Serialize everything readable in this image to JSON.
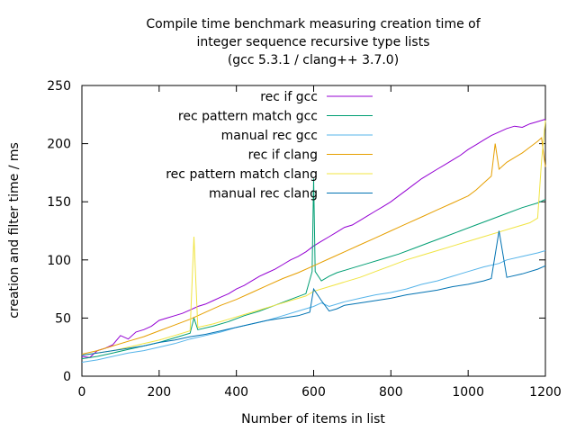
{
  "chart_data": {
    "type": "line",
    "title_lines": [
      "Compile time benchmark measuring creation time of",
      "integer sequence recursive type lists",
      "(gcc 5.3.1 / clang++ 3.7.0)"
    ],
    "xlabel": "Number of items in list",
    "ylabel": "creation and filter time / ms",
    "xlim": [
      0,
      1200
    ],
    "ylim": [
      0,
      250
    ],
    "xticks": [
      0,
      200,
      400,
      600,
      800,
      1000,
      1200
    ],
    "yticks": [
      0,
      50,
      100,
      150,
      200,
      250
    ],
    "grid": false,
    "legend_position": "top-left",
    "series": [
      {
        "name": "rec if gcc",
        "color": "#9400d3",
        "points": [
          [
            0,
            17
          ],
          [
            20,
            16
          ],
          [
            40,
            22
          ],
          [
            60,
            24
          ],
          [
            80,
            27
          ],
          [
            100,
            35
          ],
          [
            120,
            32
          ],
          [
            140,
            38
          ],
          [
            160,
            40
          ],
          [
            180,
            43
          ],
          [
            200,
            48
          ],
          [
            220,
            50
          ],
          [
            240,
            52
          ],
          [
            260,
            54
          ],
          [
            280,
            57
          ],
          [
            300,
            60
          ],
          [
            320,
            62
          ],
          [
            340,
            65
          ],
          [
            360,
            68
          ],
          [
            380,
            71
          ],
          [
            400,
            75
          ],
          [
            420,
            78
          ],
          [
            440,
            82
          ],
          [
            460,
            86
          ],
          [
            480,
            89
          ],
          [
            500,
            92
          ],
          [
            520,
            96
          ],
          [
            540,
            100
          ],
          [
            560,
            103
          ],
          [
            580,
            107
          ],
          [
            600,
            112
          ],
          [
            620,
            116
          ],
          [
            640,
            120
          ],
          [
            660,
            124
          ],
          [
            680,
            128
          ],
          [
            700,
            130
          ],
          [
            720,
            134
          ],
          [
            740,
            138
          ],
          [
            760,
            142
          ],
          [
            780,
            146
          ],
          [
            800,
            150
          ],
          [
            820,
            155
          ],
          [
            840,
            160
          ],
          [
            860,
            165
          ],
          [
            880,
            170
          ],
          [
            900,
            174
          ],
          [
            920,
            178
          ],
          [
            940,
            182
          ],
          [
            960,
            186
          ],
          [
            980,
            190
          ],
          [
            1000,
            195
          ],
          [
            1020,
            199
          ],
          [
            1040,
            203
          ],
          [
            1060,
            207
          ],
          [
            1080,
            210
          ],
          [
            1100,
            213
          ],
          [
            1120,
            215
          ],
          [
            1140,
            214
          ],
          [
            1160,
            217
          ],
          [
            1180,
            219
          ],
          [
            1200,
            221
          ]
        ]
      },
      {
        "name": "rec pattern match gcc",
        "color": "#009e73",
        "points": [
          [
            0,
            15
          ],
          [
            40,
            17
          ],
          [
            80,
            20
          ],
          [
            120,
            23
          ],
          [
            160,
            26
          ],
          [
            200,
            29
          ],
          [
            240,
            33
          ],
          [
            280,
            37
          ],
          [
            290,
            50
          ],
          [
            300,
            40
          ],
          [
            340,
            43
          ],
          [
            380,
            47
          ],
          [
            420,
            52
          ],
          [
            460,
            56
          ],
          [
            500,
            61
          ],
          [
            540,
            66
          ],
          [
            580,
            71
          ],
          [
            596,
            90
          ],
          [
            600,
            170
          ],
          [
            604,
            90
          ],
          [
            620,
            82
          ],
          [
            640,
            86
          ],
          [
            660,
            89
          ],
          [
            700,
            93
          ],
          [
            740,
            97
          ],
          [
            780,
            101
          ],
          [
            820,
            105
          ],
          [
            860,
            110
          ],
          [
            900,
            115
          ],
          [
            940,
            120
          ],
          [
            980,
            125
          ],
          [
            1020,
            130
          ],
          [
            1060,
            135
          ],
          [
            1100,
            140
          ],
          [
            1140,
            145
          ],
          [
            1180,
            149
          ],
          [
            1200,
            152
          ]
        ]
      },
      {
        "name": "manual rec gcc",
        "color": "#56b4e9",
        "points": [
          [
            0,
            12
          ],
          [
            40,
            14
          ],
          [
            80,
            17
          ],
          [
            120,
            20
          ],
          [
            160,
            22
          ],
          [
            200,
            25
          ],
          [
            240,
            28
          ],
          [
            280,
            32
          ],
          [
            320,
            35
          ],
          [
            360,
            38
          ],
          [
            400,
            42
          ],
          [
            440,
            45
          ],
          [
            480,
            48
          ],
          [
            520,
            52
          ],
          [
            560,
            56
          ],
          [
            600,
            60
          ],
          [
            620,
            63
          ],
          [
            640,
            60
          ],
          [
            680,
            64
          ],
          [
            720,
            67
          ],
          [
            760,
            70
          ],
          [
            800,
            72
          ],
          [
            840,
            75
          ],
          [
            880,
            79
          ],
          [
            920,
            82
          ],
          [
            960,
            86
          ],
          [
            1000,
            90
          ],
          [
            1040,
            94
          ],
          [
            1080,
            97
          ],
          [
            1100,
            100
          ],
          [
            1140,
            103
          ],
          [
            1180,
            106
          ],
          [
            1200,
            108
          ]
        ]
      },
      {
        "name": "rec if clang",
        "color": "#e69f00",
        "points": [
          [
            0,
            19
          ],
          [
            40,
            22
          ],
          [
            80,
            26
          ],
          [
            120,
            30
          ],
          [
            160,
            34
          ],
          [
            200,
            39
          ],
          [
            240,
            44
          ],
          [
            280,
            49
          ],
          [
            320,
            55
          ],
          [
            360,
            61
          ],
          [
            400,
            66
          ],
          [
            440,
            72
          ],
          [
            480,
            78
          ],
          [
            520,
            84
          ],
          [
            560,
            89
          ],
          [
            600,
            95
          ],
          [
            640,
            101
          ],
          [
            680,
            107
          ],
          [
            720,
            113
          ],
          [
            760,
            119
          ],
          [
            800,
            125
          ],
          [
            840,
            131
          ],
          [
            880,
            137
          ],
          [
            920,
            143
          ],
          [
            960,
            149
          ],
          [
            1000,
            155
          ],
          [
            1020,
            160
          ],
          [
            1040,
            166
          ],
          [
            1060,
            172
          ],
          [
            1070,
            200
          ],
          [
            1080,
            178
          ],
          [
            1100,
            184
          ],
          [
            1120,
            188
          ],
          [
            1140,
            192
          ],
          [
            1160,
            197
          ],
          [
            1180,
            202
          ],
          [
            1190,
            205
          ],
          [
            1200,
            180
          ]
        ]
      },
      {
        "name": "rec pattern match clang",
        "color": "#f0e442",
        "points": [
          [
            0,
            18
          ],
          [
            40,
            20
          ],
          [
            80,
            22
          ],
          [
            120,
            25
          ],
          [
            160,
            28
          ],
          [
            200,
            31
          ],
          [
            240,
            35
          ],
          [
            280,
            39
          ],
          [
            290,
            120
          ],
          [
            300,
            42
          ],
          [
            340,
            45
          ],
          [
            380,
            49
          ],
          [
            420,
            53
          ],
          [
            460,
            57
          ],
          [
            500,
            61
          ],
          [
            540,
            65
          ],
          [
            580,
            69
          ],
          [
            600,
            73
          ],
          [
            640,
            77
          ],
          [
            680,
            81
          ],
          [
            720,
            85
          ],
          [
            760,
            90
          ],
          [
            800,
            95
          ],
          [
            840,
            100
          ],
          [
            880,
            104
          ],
          [
            920,
            108
          ],
          [
            960,
            112
          ],
          [
            1000,
            116
          ],
          [
            1040,
            120
          ],
          [
            1080,
            124
          ],
          [
            1120,
            128
          ],
          [
            1160,
            132
          ],
          [
            1180,
            136
          ],
          [
            1190,
            185
          ],
          [
            1200,
            220
          ]
        ]
      },
      {
        "name": "manual rec clang",
        "color": "#0072b2",
        "points": [
          [
            0,
            18
          ],
          [
            40,
            20
          ],
          [
            80,
            22
          ],
          [
            120,
            24
          ],
          [
            160,
            26
          ],
          [
            200,
            29
          ],
          [
            240,
            31
          ],
          [
            280,
            34
          ],
          [
            320,
            36
          ],
          [
            360,
            39
          ],
          [
            400,
            42
          ],
          [
            440,
            45
          ],
          [
            480,
            48
          ],
          [
            520,
            50
          ],
          [
            560,
            52
          ],
          [
            590,
            55
          ],
          [
            600,
            75
          ],
          [
            620,
            65
          ],
          [
            640,
            56
          ],
          [
            660,
            58
          ],
          [
            680,
            61
          ],
          [
            720,
            63
          ],
          [
            760,
            65
          ],
          [
            800,
            67
          ],
          [
            840,
            70
          ],
          [
            880,
            72
          ],
          [
            920,
            74
          ],
          [
            960,
            77
          ],
          [
            1000,
            79
          ],
          [
            1040,
            82
          ],
          [
            1060,
            84
          ],
          [
            1080,
            125
          ],
          [
            1100,
            85
          ],
          [
            1140,
            88
          ],
          [
            1180,
            92
          ],
          [
            1200,
            95
          ]
        ]
      }
    ]
  }
}
